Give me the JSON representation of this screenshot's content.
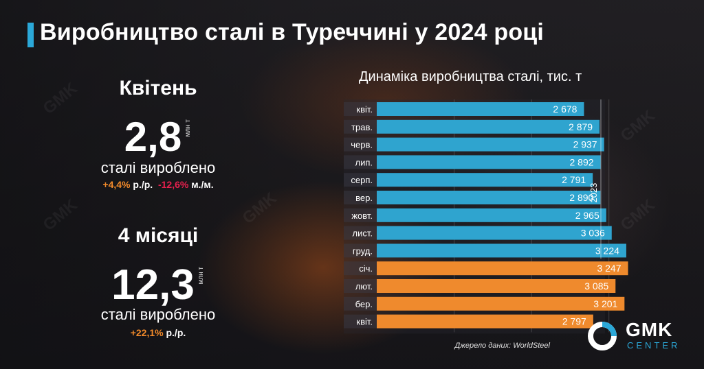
{
  "header": {
    "title": "Виробництво сталі в Туреччині у 2024 році"
  },
  "april": {
    "label": "Квітень",
    "value": "2,8",
    "unit": "млн т",
    "produced_label": "сталі вироблено",
    "yoy_value": "+4,4%",
    "yoy_suffix": " р./р.",
    "mom_value": "-12,6%",
    "mom_suffix": " м./м."
  },
  "four_months": {
    "label": "4 місяці",
    "value": "12,3",
    "unit": "млн т",
    "produced_label": "сталі вироблено",
    "yoy_value": "+22,1%",
    "yoy_suffix": " р./р."
  },
  "chart_data": {
    "type": "bar",
    "orientation": "horizontal",
    "title": "Динаміка виробництва сталі, тис. т",
    "categories": [
      "квіт.",
      "трав.",
      "черв.",
      "лип.",
      "серп.",
      "вер.",
      "жовт.",
      "лист.",
      "груд.",
      "січ.",
      "лют.",
      "бер.",
      "квіт."
    ],
    "values": [
      2678,
      2879,
      2937,
      2892,
      2791,
      2890,
      2965,
      3036,
      3224,
      3247,
      3085,
      3201,
      2797
    ],
    "value_labels": [
      "2 678",
      "2 879",
      "2 937",
      "2 892",
      "2 791",
      "2 890",
      "2 965",
      "3 036",
      "3 224",
      "3 247",
      "3 085",
      "3 201",
      "2 797"
    ],
    "groups": [
      {
        "label": "2023",
        "count": 9,
        "color": "#2fa4cf"
      },
      {
        "label": "",
        "count": 4,
        "color": "#ef8a2d"
      }
    ],
    "xlim": [
      0,
      3500
    ],
    "grid": true
  },
  "source": {
    "text": "Джерело даних: WorldSteel"
  },
  "logo": {
    "main": "GMK",
    "sub": "CENTER"
  },
  "colors": {
    "accent": "#2ba8d8",
    "bar_2023": "#2fa4cf",
    "bar_2024": "#ef8a2d",
    "positive": "#f28a2a",
    "negative": "#e8204e"
  }
}
